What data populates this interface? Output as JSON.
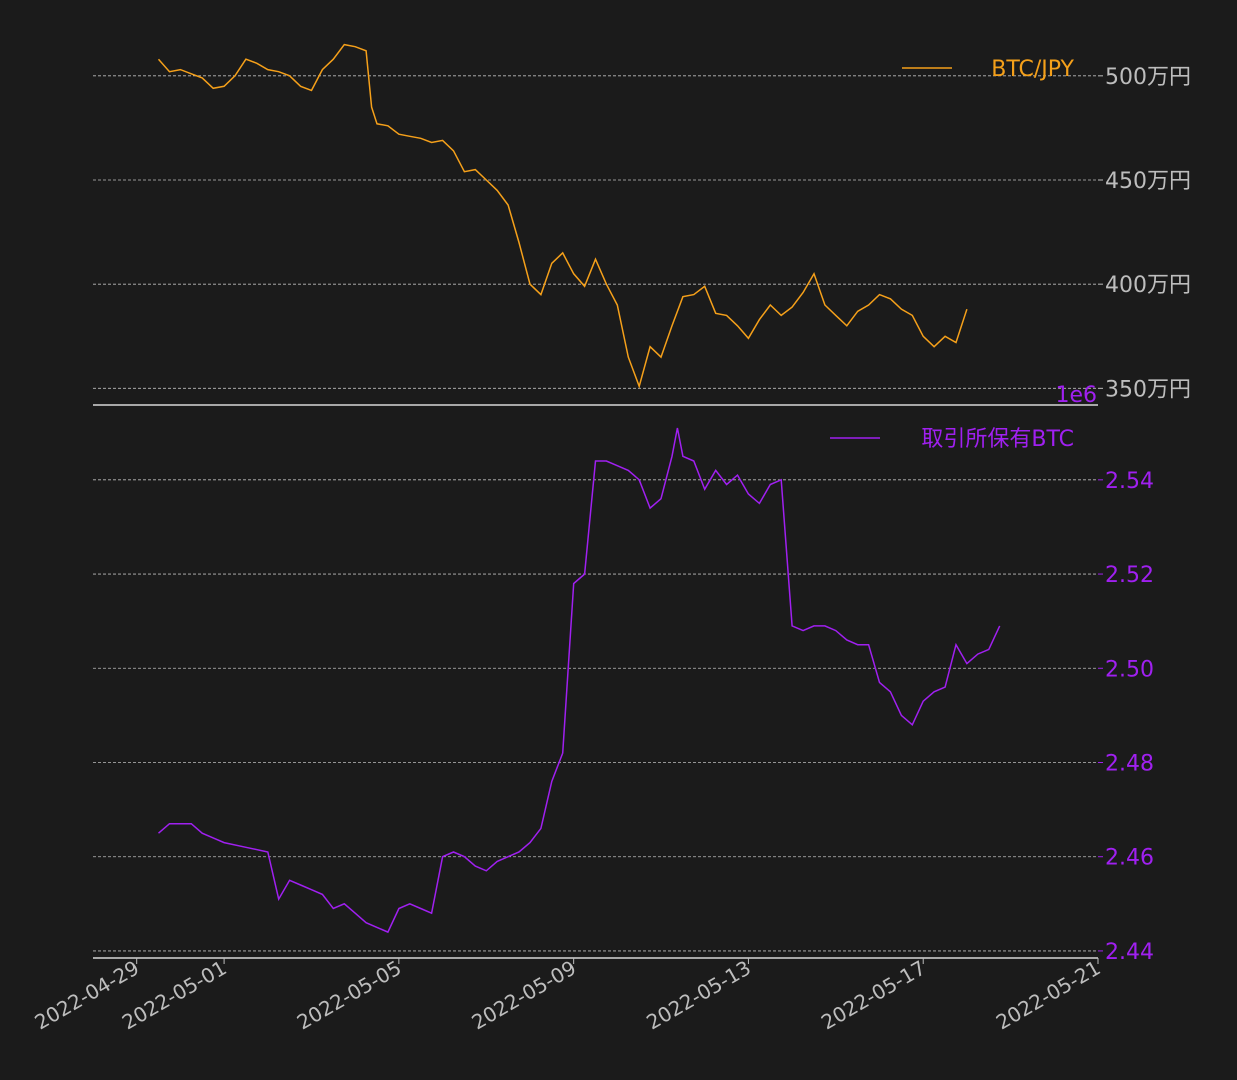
{
  "colors": {
    "background": "#1b1b1b",
    "price_series": "#f5a01a",
    "holdings_series": "#a020f0",
    "axis_text": "#bdbdbd",
    "grid": "#bdbdbd"
  },
  "chart_data": [
    {
      "type": "line",
      "legend": {
        "label": "BTC/JPY",
        "position": "top-right"
      },
      "y_ticks": [
        {
          "value": 5000000,
          "label": "500万円"
        },
        {
          "value": 4500000,
          "label": "450万円"
        },
        {
          "value": 4000000,
          "label": "400万円"
        },
        {
          "value": 3500000,
          "label": "350万円"
        }
      ],
      "ylim": [
        3420000,
        5220000
      ],
      "y_axis_side": "right",
      "grid": true,
      "series": [
        {
          "name": "BTC/JPY",
          "color": "#f5a01a",
          "points": [
            [
              "2022-04-29T12:00",
              5080000
            ],
            [
              "2022-04-29T18:00",
              5020000
            ],
            [
              "2022-04-30T00:00",
              5030000
            ],
            [
              "2022-04-30T06:00",
              5010000
            ],
            [
              "2022-04-30T12:00",
              4990000
            ],
            [
              "2022-04-30T18:00",
              4940000
            ],
            [
              "2022-05-01T00:00",
              4950000
            ],
            [
              "2022-05-01T06:00",
              5000000
            ],
            [
              "2022-05-01T12:00",
              5080000
            ],
            [
              "2022-05-01T18:00",
              5060000
            ],
            [
              "2022-05-02T00:00",
              5030000
            ],
            [
              "2022-05-02T06:00",
              5020000
            ],
            [
              "2022-05-02T12:00",
              5000000
            ],
            [
              "2022-05-02T18:00",
              4950000
            ],
            [
              "2022-05-03T00:00",
              4930000
            ],
            [
              "2022-05-03T06:00",
              5030000
            ],
            [
              "2022-05-03T12:00",
              5080000
            ],
            [
              "2022-05-03T18:00",
              5150000
            ],
            [
              "2022-05-04T00:00",
              5140000
            ],
            [
              "2022-05-04T06:00",
              5120000
            ],
            [
              "2022-05-04T09:00",
              4850000
            ],
            [
              "2022-05-04T12:00",
              4770000
            ],
            [
              "2022-05-04T18:00",
              4760000
            ],
            [
              "2022-05-05T00:00",
              4720000
            ],
            [
              "2022-05-05T06:00",
              4710000
            ],
            [
              "2022-05-05T12:00",
              4700000
            ],
            [
              "2022-05-05T18:00",
              4680000
            ],
            [
              "2022-05-06T00:00",
              4690000
            ],
            [
              "2022-05-06T06:00",
              4640000
            ],
            [
              "2022-05-06T12:00",
              4540000
            ],
            [
              "2022-05-06T18:00",
              4550000
            ],
            [
              "2022-05-07T00:00",
              4500000
            ],
            [
              "2022-05-07T06:00",
              4450000
            ],
            [
              "2022-05-07T12:00",
              4380000
            ],
            [
              "2022-05-07T18:00",
              4200000
            ],
            [
              "2022-05-08T00:00",
              4000000
            ],
            [
              "2022-05-08T06:00",
              3950000
            ],
            [
              "2022-05-08T12:00",
              4100000
            ],
            [
              "2022-05-08T18:00",
              4150000
            ],
            [
              "2022-05-09T00:00",
              4050000
            ],
            [
              "2022-05-09T06:00",
              3990000
            ],
            [
              "2022-05-09T12:00",
              4120000
            ],
            [
              "2022-05-09T18:00",
              4000000
            ],
            [
              "2022-05-10T00:00",
              3900000
            ],
            [
              "2022-05-10T06:00",
              3650000
            ],
            [
              "2022-05-10T12:00",
              3510000
            ],
            [
              "2022-05-10T18:00",
              3700000
            ],
            [
              "2022-05-11T00:00",
              3650000
            ],
            [
              "2022-05-11T06:00",
              3800000
            ],
            [
              "2022-05-11T12:00",
              3940000
            ],
            [
              "2022-05-11T18:00",
              3950000
            ],
            [
              "2022-05-12T00:00",
              3990000
            ],
            [
              "2022-05-12T06:00",
              3860000
            ],
            [
              "2022-05-12T12:00",
              3850000
            ],
            [
              "2022-05-12T18:00",
              3800000
            ],
            [
              "2022-05-13T00:00",
              3740000
            ],
            [
              "2022-05-13T06:00",
              3830000
            ],
            [
              "2022-05-13T12:00",
              3900000
            ],
            [
              "2022-05-13T18:00",
              3850000
            ],
            [
              "2022-05-14T00:00",
              3890000
            ],
            [
              "2022-05-14T06:00",
              3960000
            ],
            [
              "2022-05-14T12:00",
              4050000
            ],
            [
              "2022-05-14T18:00",
              3900000
            ],
            [
              "2022-05-15T00:00",
              3850000
            ],
            [
              "2022-05-15T06:00",
              3800000
            ],
            [
              "2022-05-15T12:00",
              3870000
            ],
            [
              "2022-05-15T18:00",
              3900000
            ],
            [
              "2022-05-16T00:00",
              3950000
            ],
            [
              "2022-05-16T06:00",
              3930000
            ],
            [
              "2022-05-16T12:00",
              3880000
            ],
            [
              "2022-05-16T18:00",
              3850000
            ],
            [
              "2022-05-17T00:00",
              3750000
            ],
            [
              "2022-05-17T06:00",
              3700000
            ],
            [
              "2022-05-17T12:00",
              3750000
            ],
            [
              "2022-05-17T18:00",
              3720000
            ],
            [
              "2022-05-18T00:00",
              3880000
            ]
          ]
        }
      ]
    },
    {
      "type": "line",
      "legend": {
        "label": "取引所保有BTC",
        "position": "top-right"
      },
      "offset_label": "1e6",
      "y_ticks": [
        {
          "value": 2.54,
          "label": "2.54"
        },
        {
          "value": 2.52,
          "label": "2.52"
        },
        {
          "value": 2.5,
          "label": "2.50"
        },
        {
          "value": 2.48,
          "label": "2.48"
        },
        {
          "value": 2.46,
          "label": "2.46"
        },
        {
          "value": 2.44,
          "label": "2.44"
        }
      ],
      "ylim": [
        2.4385,
        2.5527
      ],
      "y_axis_side": "right",
      "grid": true,
      "series": [
        {
          "name": "取引所保有BTC",
          "color": "#a020f0",
          "points": [
            [
              "2022-04-29T12:00",
              2.465
            ],
            [
              "2022-04-29T18:00",
              2.467
            ],
            [
              "2022-04-30T00:00",
              2.467
            ],
            [
              "2022-04-30T06:00",
              2.467
            ],
            [
              "2022-04-30T12:00",
              2.465
            ],
            [
              "2022-04-30T18:00",
              2.464
            ],
            [
              "2022-05-01T00:00",
              2.463
            ],
            [
              "2022-05-01T12:00",
              2.462
            ],
            [
              "2022-05-02T00:00",
              2.461
            ],
            [
              "2022-05-02T06:00",
              2.451
            ],
            [
              "2022-05-02T12:00",
              2.455
            ],
            [
              "2022-05-02T18:00",
              2.454
            ],
            [
              "2022-05-03T00:00",
              2.453
            ],
            [
              "2022-05-03T06:00",
              2.452
            ],
            [
              "2022-05-03T12:00",
              2.449
            ],
            [
              "2022-05-03T18:00",
              2.45
            ],
            [
              "2022-05-04T00:00",
              2.448
            ],
            [
              "2022-05-04T06:00",
              2.446
            ],
            [
              "2022-05-04T12:00",
              2.445
            ],
            [
              "2022-05-04T18:00",
              2.444
            ],
            [
              "2022-05-05T00:00",
              2.449
            ],
            [
              "2022-05-05T06:00",
              2.45
            ],
            [
              "2022-05-05T12:00",
              2.449
            ],
            [
              "2022-05-05T18:00",
              2.448
            ],
            [
              "2022-05-06T00:00",
              2.46
            ],
            [
              "2022-05-06T06:00",
              2.461
            ],
            [
              "2022-05-06T12:00",
              2.46
            ],
            [
              "2022-05-06T18:00",
              2.458
            ],
            [
              "2022-05-07T00:00",
              2.457
            ],
            [
              "2022-05-07T06:00",
              2.459
            ],
            [
              "2022-05-07T12:00",
              2.46
            ],
            [
              "2022-05-07T18:00",
              2.461
            ],
            [
              "2022-05-08T00:00",
              2.463
            ],
            [
              "2022-05-08T06:00",
              2.466
            ],
            [
              "2022-05-08T12:00",
              2.476
            ],
            [
              "2022-05-08T18:00",
              2.482
            ],
            [
              "2022-05-09T00:00",
              2.518
            ],
            [
              "2022-05-09T06:00",
              2.52
            ],
            [
              "2022-05-09T12:00",
              2.544
            ],
            [
              "2022-05-09T18:00",
              2.544
            ],
            [
              "2022-05-10T00:00",
              2.543
            ],
            [
              "2022-05-10T06:00",
              2.542
            ],
            [
              "2022-05-10T12:00",
              2.54
            ],
            [
              "2022-05-10T18:00",
              2.534
            ],
            [
              "2022-05-11T00:00",
              2.536
            ],
            [
              "2022-05-11T06:00",
              2.545
            ],
            [
              "2022-05-11T09:00",
              2.551
            ],
            [
              "2022-05-11T12:00",
              2.545
            ],
            [
              "2022-05-11T18:00",
              2.544
            ],
            [
              "2022-05-12T00:00",
              2.538
            ],
            [
              "2022-05-12T06:00",
              2.542
            ],
            [
              "2022-05-12T12:00",
              2.539
            ],
            [
              "2022-05-12T18:00",
              2.541
            ],
            [
              "2022-05-13T00:00",
              2.537
            ],
            [
              "2022-05-13T06:00",
              2.535
            ],
            [
              "2022-05-13T12:00",
              2.539
            ],
            [
              "2022-05-13T18:00",
              2.54
            ],
            [
              "2022-05-14T00:00",
              2.509
            ],
            [
              "2022-05-14T06:00",
              2.508
            ],
            [
              "2022-05-14T12:00",
              2.509
            ],
            [
              "2022-05-14T18:00",
              2.509
            ],
            [
              "2022-05-15T00:00",
              2.508
            ],
            [
              "2022-05-15T06:00",
              2.506
            ],
            [
              "2022-05-15T12:00",
              2.505
            ],
            [
              "2022-05-15T18:00",
              2.505
            ],
            [
              "2022-05-16T00:00",
              2.497
            ],
            [
              "2022-05-16T06:00",
              2.495
            ],
            [
              "2022-05-16T12:00",
              2.49
            ],
            [
              "2022-05-16T18:00",
              2.488
            ],
            [
              "2022-05-17T00:00",
              2.493
            ],
            [
              "2022-05-17T06:00",
              2.495
            ],
            [
              "2022-05-17T12:00",
              2.496
            ],
            [
              "2022-05-17T18:00",
              2.505
            ],
            [
              "2022-05-18T00:00",
              2.501
            ],
            [
              "2022-05-18T06:00",
              2.503
            ],
            [
              "2022-05-18T12:00",
              2.504
            ],
            [
              "2022-05-18T18:00",
              2.509
            ]
          ]
        }
      ]
    }
  ],
  "x_axis": {
    "range": [
      "2022-04-28T00:00",
      "2022-05-21T00:00"
    ],
    "ticks": [
      "2022-04-29",
      "2022-05-01",
      "2022-05-05",
      "2022-05-09",
      "2022-05-13",
      "2022-05-17",
      "2022-05-21"
    ]
  }
}
